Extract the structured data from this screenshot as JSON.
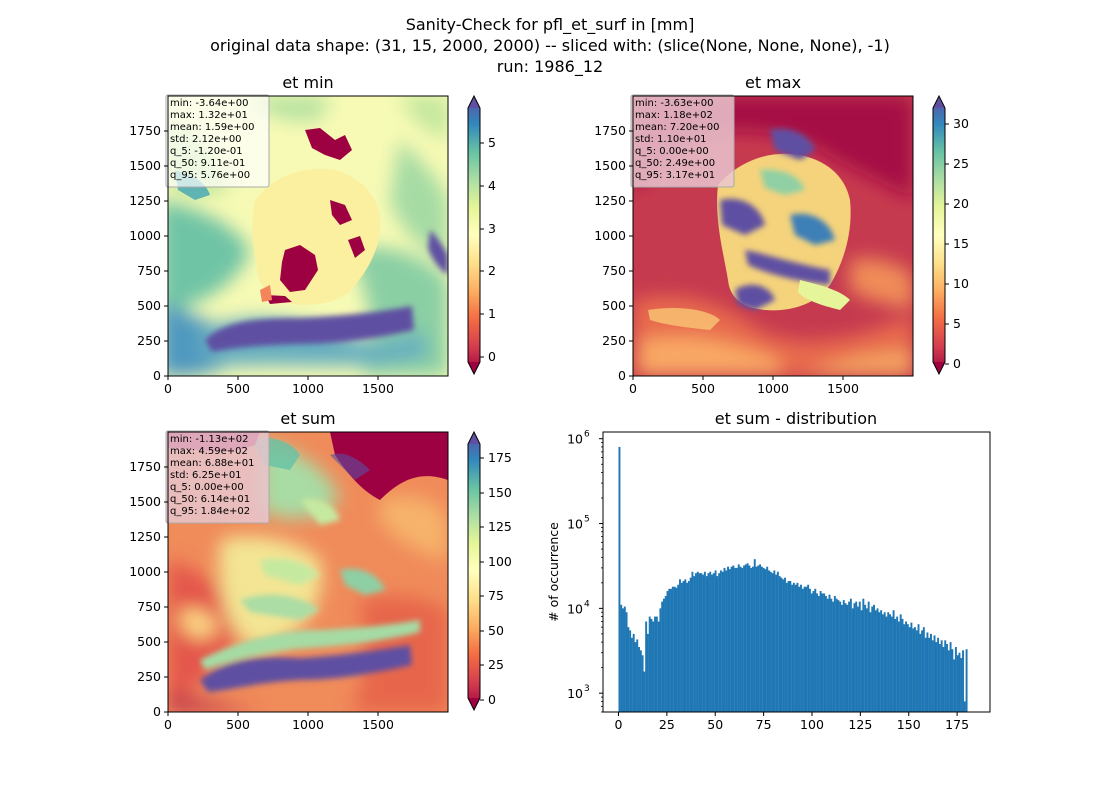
{
  "figure": {
    "suptitle_lines": [
      "Sanity-Check for pfl_et_surf in [mm]",
      "original data shape: (31, 15, 2000, 2000) -- sliced with: (slice(None, None, None), -1)",
      "run: 1986_12"
    ]
  },
  "colors": {
    "stats_box_light": "#f2f2d8",
    "stats_box_dark": "#d0b0b8",
    "hist_bar": "#1f77b4",
    "map_background_low": "#9e0142",
    "map_land_mid": "#fdf6a6",
    "map_high": "#5e4fa2"
  },
  "chart_data": [
    {
      "type": "heatmap",
      "title": "et min",
      "x_ticks": [
        "0",
        "500",
        "1000",
        "1500"
      ],
      "y_ticks": [
        "0",
        "250",
        "500",
        "750",
        "1000",
        "1250",
        "1500",
        "1750"
      ],
      "xlim": [
        0,
        2000
      ],
      "ylim": [
        0,
        2000
      ],
      "colormap": "Spectral",
      "colorbar_ticks": [
        "0",
        "1",
        "2",
        "3",
        "4",
        "5"
      ],
      "colorbar_range": [
        -0.3,
        5.76
      ],
      "stats": [
        "min: -3.64e+00",
        "max: 1.32e+01",
        "mean: 1.59e+00",
        "std: 2.12e+00",
        "q_5: -1.20e-01",
        "q_50: 9.11e-01",
        "q_95: 5.76e+00"
      ]
    },
    {
      "type": "heatmap",
      "title": "et max",
      "x_ticks": [
        "0",
        "500",
        "1000",
        "1500"
      ],
      "y_ticks": [
        "0",
        "250",
        "500",
        "750",
        "1000",
        "1250",
        "1500",
        "1750"
      ],
      "xlim": [
        0,
        2000
      ],
      "ylim": [
        0,
        2000
      ],
      "colormap": "Spectral",
      "colorbar_ticks": [
        "0",
        "5",
        "10",
        "15",
        "20",
        "25",
        "30"
      ],
      "colorbar_range": [
        0,
        31.7
      ],
      "stats": [
        "min: -3.63e+00",
        "max: 1.18e+02",
        "mean: 7.20e+00",
        "std: 1.10e+01",
        "q_5: 0.00e+00",
        "q_50: 2.49e+00",
        "q_95: 3.17e+01"
      ]
    },
    {
      "type": "heatmap",
      "title": "et sum",
      "x_ticks": [
        "0",
        "500",
        "1000",
        "1500"
      ],
      "y_ticks": [
        "0",
        "250",
        "500",
        "750",
        "1000",
        "1250",
        "1500",
        "1750"
      ],
      "xlim": [
        0,
        2000
      ],
      "ylim": [
        0,
        2000
      ],
      "colormap": "Spectral",
      "colorbar_ticks": [
        "0",
        "25",
        "50",
        "75",
        "100",
        "125",
        "150",
        "175"
      ],
      "colorbar_range": [
        0,
        184
      ],
      "stats": [
        "min: -1.13e+02",
        "max: 4.59e+02",
        "mean: 6.88e+01",
        "std: 6.25e+01",
        "q_5: 0.00e+00",
        "q_50: 6.14e+01",
        "q_95: 1.84e+02"
      ]
    },
    {
      "type": "bar",
      "title": "et sum - distribution",
      "xlabel": "",
      "ylabel": "# of occurrence",
      "x_ticks": [
        "0",
        "25",
        "50",
        "75",
        "100",
        "125",
        "150",
        "175"
      ],
      "xlim": [
        -8,
        192
      ],
      "y_scale": "log",
      "ylim": [
        600,
        1200000
      ],
      "y_ticks": [
        {
          "value": 1000,
          "base": "10",
          "exp": "3"
        },
        {
          "value": 10000,
          "base": "10",
          "exp": "4"
        },
        {
          "value": 100000,
          "base": "10",
          "exp": "5"
        },
        {
          "value": 1000000,
          "base": "10",
          "exp": "6"
        }
      ],
      "bin_width": 0.92,
      "bin_start": 0,
      "counts": [
        800000,
        11000,
        10000,
        10500,
        9000,
        6000,
        5500,
        4500,
        5000,
        4000,
        4300,
        3500,
        3200,
        2800,
        1800,
        7000,
        5000,
        8000,
        7500,
        7000,
        8000,
        8000,
        7000,
        10000,
        12000,
        13000,
        14000,
        16000,
        17000,
        17000,
        18000,
        18000,
        17500,
        19000,
        22000,
        20000,
        21000,
        22000,
        20000,
        21000,
        23000,
        27000,
        24000,
        26000,
        27000,
        26000,
        26000,
        25000,
        27000,
        24000,
        26000,
        27000,
        25000,
        26000,
        28000,
        24000,
        26000,
        28000,
        27000,
        30000,
        28000,
        31000,
        29000,
        31000,
        32000,
        30000,
        30000,
        33000,
        31000,
        30000,
        32000,
        33000,
        34000,
        32000,
        30000,
        31000,
        38000,
        31000,
        32000,
        33000,
        31000,
        30000,
        29000,
        31000,
        28000,
        27000,
        26000,
        28000,
        25000,
        27000,
        24000,
        23000,
        22000,
        23000,
        20000,
        21000,
        21000,
        19000,
        20000,
        19000,
        20000,
        18000,
        19000,
        17000,
        18000,
        18000,
        19000,
        17000,
        15000,
        16000,
        17000,
        15000,
        14000,
        16000,
        15000,
        15000,
        14000,
        13000,
        14500,
        13000,
        12000,
        14000,
        13000,
        12500,
        12000,
        11000,
        12500,
        11500,
        11000,
        12000,
        13000,
        10000,
        11500,
        12000,
        10500,
        12000,
        9500,
        13000,
        11000,
        10000,
        12000,
        9000,
        10500,
        11000,
        9500,
        10000,
        9000,
        9500,
        8500,
        9000,
        8000,
        9000,
        8500,
        8000,
        9500,
        7500,
        8000,
        7000,
        8500,
        7500,
        6500,
        7000,
        6500,
        6000,
        6800,
        5800,
        6000,
        5500,
        6500,
        5000,
        5500,
        6000,
        4500,
        5200,
        4500,
        5000,
        4200,
        4800,
        4000,
        4500,
        3800,
        4200,
        3500,
        4200,
        3800,
        3200,
        4000,
        3300,
        2500,
        3500,
        2800,
        3000,
        2600,
        3200,
        800,
        3300
      ]
    }
  ]
}
